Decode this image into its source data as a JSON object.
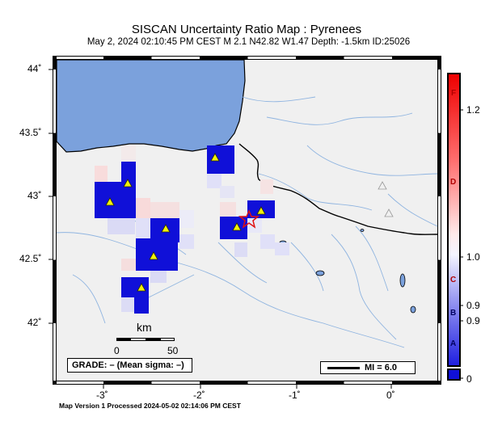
{
  "header": {
    "title": "SISCAN Uncertainty Ratio Map : Pyrenees",
    "subtitle": "May  2, 2024 02:10:45 PM CEST   M 2.1   N42.82 W1.47   Depth: -1.5km   ID:25026"
  },
  "axes": {
    "lat_labels": [
      "44˚",
      "43.5˚",
      "43˚",
      "42.5˚",
      "42˚"
    ],
    "lon_labels": [
      "-3˚",
      "-2˚",
      "-1˚",
      "0˚"
    ]
  },
  "scale": {
    "title": "km",
    "min_label": "0",
    "max_label": "50"
  },
  "grade_box": {
    "text": "GRADE: – (Mean sigma: –)"
  },
  "mi_box": {
    "text": "MI = 6.0"
  },
  "colorbar": {
    "labels": [
      "1.2",
      "1.0",
      "0.9",
      "0.9",
      "0"
    ],
    "grades": [
      "F",
      "D",
      "C",
      "B",
      "A"
    ]
  },
  "footer": {
    "text": "Map Version 1 Processed 2024-05-02 02:14:06 PM CEST"
  },
  "colors": {
    "sea": "#7ba1dc",
    "land": "#f0f0f0",
    "river": "#8fb4e0",
    "high_uncertainty": "#1010d8",
    "station": "#f2f20a",
    "epicenter": "#e01010"
  },
  "map": {
    "epicenter": {
      "lat": 42.82,
      "lon": -1.47
    },
    "stations": [
      {
        "lat": 43.35,
        "lon": -1.9
      },
      {
        "lat": 43.1,
        "lon": -2.8
      },
      {
        "lat": 42.98,
        "lon": -3.0
      },
      {
        "lat": 42.8,
        "lon": -2.6
      },
      {
        "lat": 42.55,
        "lon": -2.7
      },
      {
        "lat": 42.3,
        "lon": -2.85
      },
      {
        "lat": 42.8,
        "lon": -1.55
      },
      {
        "lat": 42.9,
        "lon": -1.3
      }
    ],
    "reference_stations": [
      {
        "lat": 43.08,
        "lon": -0.02
      },
      {
        "lat": 42.9,
        "lon": 0.02
      }
    ]
  }
}
